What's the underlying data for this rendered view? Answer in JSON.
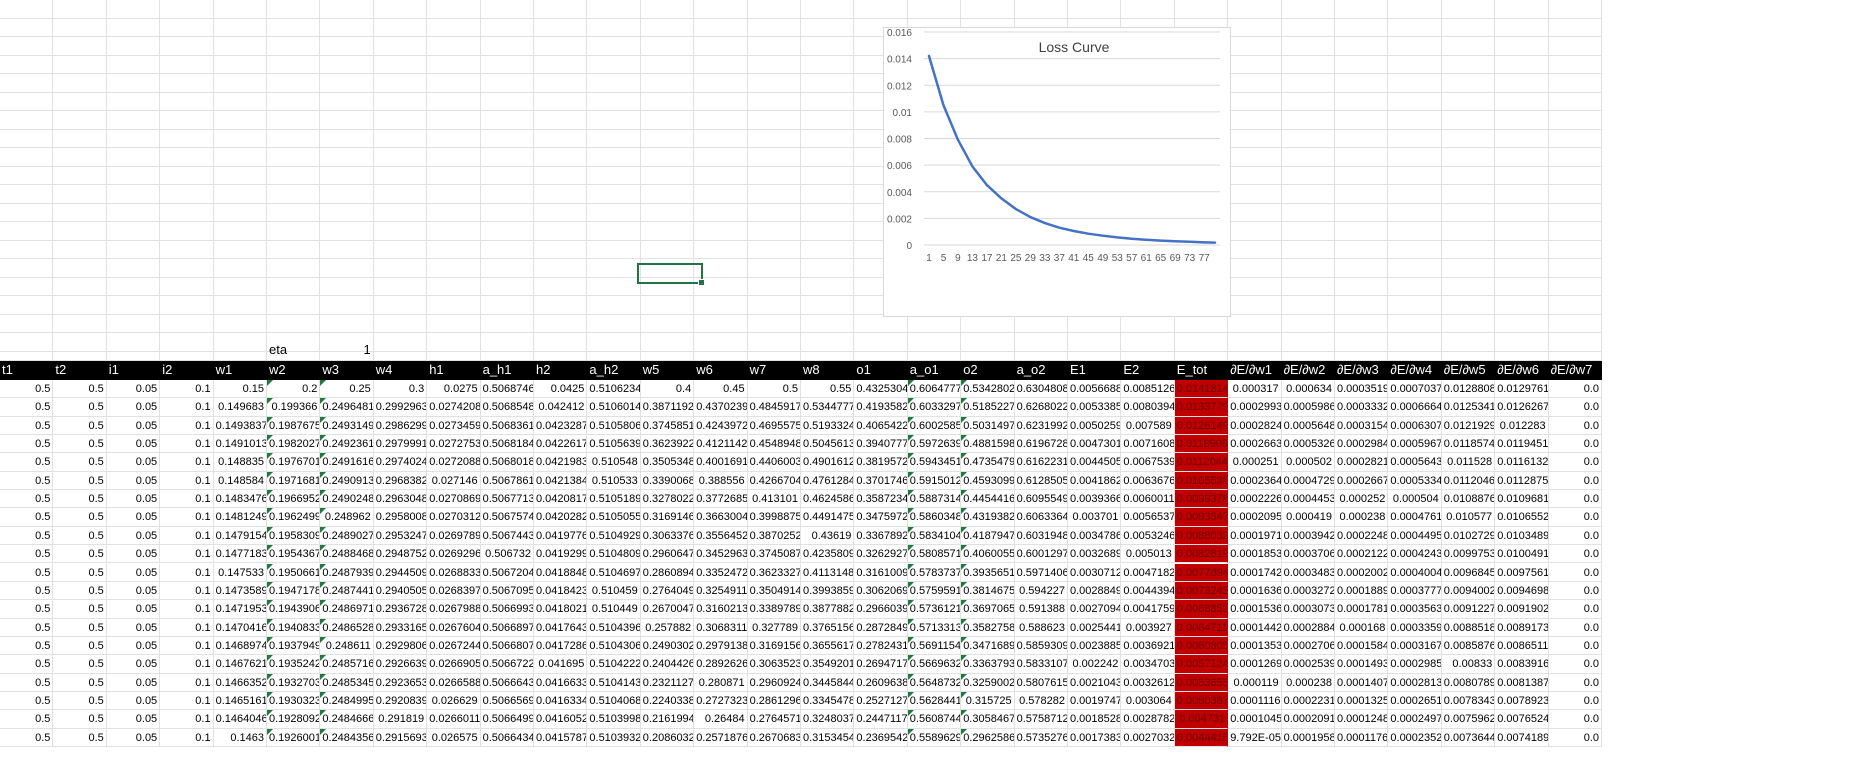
{
  "sheet": {
    "eta": {
      "label": "eta",
      "value": "1"
    },
    "headers": [
      "t1",
      "t2",
      "i1",
      "i2",
      "w1",
      "w2",
      "w3",
      "w4",
      "h1",
      "a_h1",
      "h2",
      "a_h2",
      "w5",
      "w6",
      "w7",
      "w8",
      "o1",
      "a_o1",
      "o2",
      "a_o2",
      "E1",
      "E2",
      "E_tot",
      "∂E/∂w1",
      "∂E/∂w2",
      "∂E/∂w3",
      "∂E/∂w4",
      "∂E/∂w5",
      "∂E/∂w6",
      "∂E/∂w7"
    ],
    "rows": [
      [
        "0.5",
        "0.5",
        "0.05",
        "0.1",
        "0.15",
        "0.2",
        "0.25",
        "0.3",
        "0.0275",
        "0.5068746",
        "0.0425",
        "0.5106234",
        "0.4",
        "0.45",
        "0.5",
        "0.55",
        "0.4325304",
        "0.6064777",
        "0.5342802",
        "0.6304808",
        "0.0056688",
        "0.0085126",
        "0.0141814",
        "0.000317",
        "0.000634",
        "0.0003519",
        "0.0007037",
        "0.0128808",
        "0.0129761",
        "0.0"
      ],
      [
        "0.5",
        "0.5",
        "0.05",
        "0.1",
        "0.149683",
        "0.199366",
        "0.2496481",
        "0.2992963",
        "0.0274208",
        "0.5068548",
        "0.042412",
        "0.5106014",
        "0.3871192",
        "0.4370239",
        "0.4845917",
        "0.5344777",
        "0.4193582",
        "0.6033297",
        "0.5185227",
        "0.6268022",
        "0.0053385",
        "0.0080394",
        "0.0133779",
        "0.0002993",
        "0.0005986",
        "0.0003332",
        "0.0006664",
        "0.0125341",
        "0.0126267",
        "0.0"
      ],
      [
        "0.5",
        "0.5",
        "0.05",
        "0.1",
        "0.1493837",
        "0.1987675",
        "0.2493149",
        "0.2986299",
        "0.0273459",
        "0.5068361",
        "0.0423287",
        "0.5105806",
        "0.3745851",
        "0.4243972",
        "0.4695575",
        "0.5193324",
        "0.4065422",
        "0.6002585",
        "0.5031497",
        "0.6231992",
        "0.0050259",
        "0.007589",
        "0.0126149",
        "0.0002824",
        "0.0005648",
        "0.0003154",
        "0.0006307",
        "0.0121929",
        "0.012283",
        "0.0"
      ],
      [
        "0.5",
        "0.5",
        "0.05",
        "0.1",
        "0.1491013",
        "0.1982027",
        "0.2492361",
        "0.2979991",
        "0.0272753",
        "0.5068184",
        "0.0422617",
        "0.5105639",
        "0.3623922",
        "0.4121142",
        "0.4548948",
        "0.5045613",
        "0.3940777",
        "0.5972639",
        "0.4881598",
        "0.6196728",
        "0.0047301",
        "0.0071608",
        "0.0118909",
        "0.0002663",
        "0.0005326",
        "0.0002984",
        "0.0005967",
        "0.0118574",
        "0.0119451",
        "0.0"
      ],
      [
        "0.5",
        "0.5",
        "0.05",
        "0.1",
        "0.148835",
        "0.1976701",
        "0.2491616",
        "0.2974024",
        "0.0272088",
        "0.5068018",
        "0.0421983",
        "0.510548",
        "0.3505348",
        "0.4001691",
        "0.4406003",
        "0.4901612",
        "0.3819572",
        "0.5943451",
        "0.4735479",
        "0.6162231",
        "0.0044505",
        "0.0067539",
        "0.0112044",
        "0.000251",
        "0.000502",
        "0.0002821",
        "0.0005643",
        "0.011528",
        "0.0116132",
        "0.0"
      ],
      [
        "0.5",
        "0.5",
        "0.05",
        "0.1",
        "0.148584",
        "0.1971681",
        "0.2490913",
        "0.2968382",
        "0.027146",
        "0.5067861",
        "0.0421384",
        "0.510533",
        "0.3390068",
        "0.388556",
        "0.4266704",
        "0.4761284",
        "0.3701746",
        "0.5915012",
        "0.4593099",
        "0.6128505",
        "0.0041862",
        "0.0063676",
        "0.0105538",
        "0.0002364",
        "0.0004729",
        "0.0002667",
        "0.0005334",
        "0.0112046",
        "0.0112875",
        "0.0"
      ],
      [
        "0.5",
        "0.5",
        "0.05",
        "0.1",
        "0.1483476",
        "0.1966952",
        "0.2490248",
        "0.2963048",
        "0.0270869",
        "0.5067713",
        "0.0420817",
        "0.5105189",
        "0.3278022",
        "0.3772685",
        "0.413101",
        "0.4624586",
        "0.3587234",
        "0.5887314",
        "0.4454416",
        "0.6095549",
        "0.0039366",
        "0.0060011",
        "0.0099378",
        "0.0002226",
        "0.0004453",
        "0.000252",
        "0.000504",
        "0.0108876",
        "0.0109681",
        "0.0"
      ],
      [
        "0.5",
        "0.5",
        "0.05",
        "0.1",
        "0.1481249",
        "0.1962499",
        "0.248962",
        "0.2958008",
        "0.0270312",
        "0.5067574",
        "0.0420282",
        "0.5105055",
        "0.3169146",
        "0.3663004",
        "0.3998875",
        "0.4491475",
        "0.3475972",
        "0.5860348",
        "0.4319382",
        "0.6063364",
        "0.003701",
        "0.0056537",
        "0.0093547",
        "0.0002095",
        "0.000419",
        "0.000238",
        "0.0004761",
        "0.010577",
        "0.0106552",
        "0.0"
      ],
      [
        "0.5",
        "0.5",
        "0.05",
        "0.1",
        "0.1479154",
        "0.1958309",
        "0.2489027",
        "0.2953247",
        "0.0269789",
        "0.5067443",
        "0.0419776",
        "0.5104929",
        "0.3063376",
        "0.3556452",
        "0.3870252",
        "0.43619",
        "0.3367892",
        "0.5834104",
        "0.4187947",
        "0.6031948",
        "0.0034786",
        "0.0053246",
        "0.0088032",
        "0.0001971",
        "0.0003942",
        "0.0002248",
        "0.0004495",
        "0.0102729",
        "0.0103489",
        "0.0"
      ],
      [
        "0.5",
        "0.5",
        "0.05",
        "0.1",
        "0.1477183",
        "0.1954367",
        "0.2488468",
        "0.2948752",
        "0.0269296",
        "0.506732",
        "0.0419299",
        "0.5104809",
        "0.2960647",
        "0.3452963",
        "0.3745087",
        "0.4235809",
        "0.3262927",
        "0.5808571",
        "0.4060055",
        "0.6001297",
        "0.0032689",
        "0.005013",
        "0.0082819",
        "0.0001853",
        "0.0003706",
        "0.0002122",
        "0.0004243",
        "0.0099753",
        "0.0100491",
        "0.0"
      ],
      [
        "0.5",
        "0.5",
        "0.05",
        "0.1",
        "0.147533",
        "0.1950661",
        "0.2487939",
        "0.2944509",
        "0.0268833",
        "0.5067204",
        "0.0418848",
        "0.5104697",
        "0.2860894",
        "0.3352472",
        "0.3623327",
        "0.4113148",
        "0.3161009",
        "0.5783737",
        "0.3935651",
        "0.5971406",
        "0.0030712",
        "0.0047182",
        "0.0077894",
        "0.0001742",
        "0.0003483",
        "0.0002002",
        "0.0004004",
        "0.0096845",
        "0.0097561",
        "0.0"
      ],
      [
        "0.5",
        "0.5",
        "0.05",
        "0.1",
        "0.1473589",
        "0.1947178",
        "0.2487441",
        "0.2940505",
        "0.0268397",
        "0.5067095",
        "0.0418423",
        "0.510459",
        "0.2764049",
        "0.3254911",
        "0.3504914",
        "0.3993859",
        "0.3062069",
        "0.5759591",
        "0.3814675",
        "0.594227",
        "0.0028849",
        "0.0044394",
        "0.0073243",
        "0.0001636",
        "0.0003272",
        "0.0001889",
        "0.0003777",
        "0.0094002",
        "0.0094698",
        "0.0"
      ],
      [
        "0.5",
        "0.5",
        "0.05",
        "0.1",
        "0.1471953",
        "0.1943906",
        "0.2486971",
        "0.2936728",
        "0.0267988",
        "0.5066993",
        "0.0418021",
        "0.510449",
        "0.2670047",
        "0.3160213",
        "0.3389789",
        "0.3877882",
        "0.2966039",
        "0.5736121",
        "0.3697065",
        "0.591388",
        "0.0027094",
        "0.0041759",
        "0.0068853",
        "0.0001536",
        "0.0003073",
        "0.0001781",
        "0.0003563",
        "0.0091227",
        "0.0091902",
        "0.0"
      ],
      [
        "0.5",
        "0.5",
        "0.05",
        "0.1",
        "0.1470416",
        "0.1940833",
        "0.2486528",
        "0.2933165",
        "0.0267604",
        "0.5066897",
        "0.0417643",
        "0.5104396",
        "0.257882",
        "0.3068311",
        "0.327789",
        "0.3765156",
        "0.2872849",
        "0.5713313",
        "0.3582758",
        "0.588623",
        "0.0025441",
        "0.003927",
        "0.0064711",
        "0.0001442",
        "0.0002884",
        "0.000168",
        "0.0003359",
        "0.0088518",
        "0.0089173",
        "0.0"
      ],
      [
        "0.5",
        "0.5",
        "0.05",
        "0.1",
        "0.1468974",
        "0.1937949",
        "0.248611",
        "0.2929806",
        "0.0267244",
        "0.5066807",
        "0.0417286",
        "0.5104306",
        "0.2490302",
        "0.2979138",
        "0.3169156",
        "0.3655617",
        "0.2782431",
        "0.5691154",
        "0.3471689",
        "0.5859309",
        "0.0023885",
        "0.0036921",
        "0.0060805",
        "0.0001353",
        "0.0002706",
        "0.0001584",
        "0.0003167",
        "0.0085876",
        "0.0086511",
        "0.0"
      ],
      [
        "0.5",
        "0.5",
        "0.05",
        "0.1",
        "0.1467621",
        "0.1935242",
        "0.2485716",
        "0.2926639",
        "0.0266905",
        "0.5066722",
        "0.041695",
        "0.5104222",
        "0.2404426",
        "0.2892626",
        "0.3063523",
        "0.3549201",
        "0.2694717",
        "0.5669632",
        "0.3363793",
        "0.5833107",
        "0.002242",
        "0.0034703",
        "0.0057124",
        "0.0001269",
        "0.0002539",
        "0.0001493",
        "0.0002985",
        "0.00833",
        "0.0083916",
        "0.0"
      ],
      [
        "0.5",
        "0.5",
        "0.05",
        "0.1",
        "0.1466352",
        "0.1932703",
        "0.2485345",
        "0.2923653",
        "0.0266588",
        "0.5066643",
        "0.0416633",
        "0.5104143",
        "0.2321127",
        "0.280871",
        "0.2960924",
        "0.3445844",
        "0.2609638",
        "0.5648732",
        "0.3259002",
        "0.5807615",
        "0.0021043",
        "0.0032612",
        "0.0053655",
        "0.000119",
        "0.000238",
        "0.0001407",
        "0.0002813",
        "0.0080789",
        "0.0081387",
        "0.0"
      ],
      [
        "0.5",
        "0.5",
        "0.05",
        "0.1",
        "0.1465161",
        "0.1930323",
        "0.2484995",
        "0.2920839",
        "0.026629",
        "0.5066569",
        "0.0416334",
        "0.5104068",
        "0.2240338",
        "0.2727323",
        "0.2861296",
        "0.3345478",
        "0.2527127",
        "0.5628441",
        "0.315725",
        "0.578282",
        "0.0019747",
        "0.003064",
        "0.0050387",
        "0.0001116",
        "0.0002231",
        "0.0001325",
        "0.0002651",
        "0.0078343",
        "0.0078923",
        "0.0"
      ],
      [
        "0.5",
        "0.5",
        "0.05",
        "0.1",
        "0.1464046",
        "0.1928092",
        "0.2484666",
        "0.291819",
        "0.0266011",
        "0.5066499",
        "0.0416052",
        "0.5103998",
        "0.2161994",
        "0.26484",
        "0.2764571",
        "0.3248037",
        "0.2447117",
        "0.5608744",
        "0.3058467",
        "0.5758712",
        "0.0018528",
        "0.0028782",
        "0.004731",
        "0.0001045",
        "0.0002091",
        "0.0001248",
        "0.0002497",
        "0.0075962",
        "0.0076524",
        "0.0"
      ],
      [
        "0.5",
        "0.5",
        "0.05",
        "0.1",
        "0.1463",
        "0.1926001",
        "0.2484356",
        "0.2915693",
        "0.026575",
        "0.5066434",
        "0.0415787",
        "0.5103932",
        "0.2086032",
        "0.2571876",
        "0.2670683",
        "0.3153454",
        "0.2369542",
        "0.5589629",
        "0.2962586",
        "0.5735276",
        "0.0017383",
        "0.0027032",
        "0.0044415",
        "9.792E-05",
        "0.0001958",
        "0.0001176",
        "0.0002352",
        "0.0073644",
        "0.0074189",
        "0.0"
      ]
    ]
  },
  "chart_data": {
    "type": "line",
    "title": "Loss Curve",
    "xlabel": "",
    "ylabel": "",
    "ylim": [
      0,
      0.016
    ],
    "y_ticks": [
      "0.016",
      "0.014",
      "0.012",
      "0.01",
      "0.008",
      "0.006",
      "0.004",
      "0.002",
      "0"
    ],
    "x_ticks": [
      "1",
      "5",
      "9",
      "13",
      "17",
      "21",
      "25",
      "29",
      "33",
      "37",
      "41",
      "45",
      "49",
      "53",
      "57",
      "61",
      "65",
      "69",
      "73",
      "77"
    ],
    "x": [
      1,
      5,
      9,
      13,
      17,
      21,
      25,
      29,
      33,
      37,
      41,
      45,
      49,
      53,
      57,
      61,
      65,
      69,
      73,
      77,
      80
    ],
    "values": [
      0.0142,
      0.0105,
      0.0079,
      0.0059,
      0.0045,
      0.0035,
      0.0027,
      0.0021,
      0.00165,
      0.0013,
      0.00105,
      0.00085,
      0.0007,
      0.00057,
      0.00047,
      0.00039,
      0.00033,
      0.00028,
      0.00024,
      0.0002,
      0.00018
    ],
    "series_color": "#4472c4",
    "grid": true
  },
  "colors": {
    "header_bg": "#000000",
    "highlight": "#c00000",
    "selection": "#217346"
  }
}
